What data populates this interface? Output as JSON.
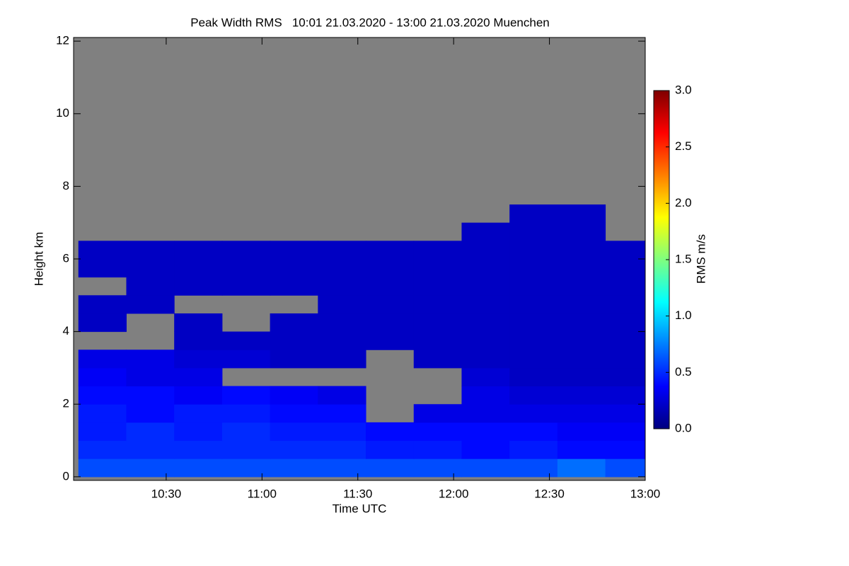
{
  "chart_data": {
    "type": "heatmap",
    "title": "Peak Width RMS   10:01 21.03.2020 - 13:00 21.03.2020 Muenchen",
    "x_label": "Time UTC",
    "y_label": "Height km",
    "colorbar_label": "RMS m/s",
    "xlim": [
      601,
      780
    ],
    "xticks": [
      {
        "value": 630,
        "label": "10:30"
      },
      {
        "value": 660,
        "label": "11:00"
      },
      {
        "value": 690,
        "label": "11:30"
      },
      {
        "value": 720,
        "label": "12:00"
      },
      {
        "value": 750,
        "label": "12:30"
      },
      {
        "value": 780,
        "label": "13:00"
      }
    ],
    "ylim": [
      -0.1,
      12.1
    ],
    "yticks": [
      0,
      2,
      4,
      6,
      8,
      10,
      12
    ],
    "zlim": [
      0,
      3
    ],
    "zticks": [
      {
        "value": 0,
        "label": "0.0"
      },
      0.5,
      {
        "value": 1,
        "label": "1.0"
      },
      1.5,
      {
        "value": 2,
        "label": "2.0"
      },
      2.5,
      {
        "value": 3,
        "label": "3.0"
      }
    ],
    "colorscale": [
      "#00007f",
      "#0000ff",
      "#007fff",
      "#00ffff",
      "#7fff7f",
      "#ffff00",
      "#ff7f00",
      "#ff0000",
      "#7f0000"
    ],
    "background": "#808080",
    "x": [
      610,
      625,
      640,
      655,
      670,
      685,
      700,
      715,
      730,
      745,
      760,
      775
    ],
    "y": [
      0.25,
      0.75,
      1.25,
      1.75,
      2.25,
      2.75,
      3.25,
      3.75,
      4.25,
      4.75,
      5.25,
      5.75,
      6.25,
      6.75,
      7.25,
      7.75
    ],
    "z": [
      [
        0.6,
        0.6,
        0.6,
        0.6,
        0.6,
        0.6,
        0.6,
        0.6,
        0.6,
        0.6,
        0.7,
        0.6
      ],
      [
        0.5,
        0.5,
        0.5,
        0.5,
        0.5,
        0.5,
        0.45,
        0.45,
        0.4,
        0.45,
        0.4,
        0.4
      ],
      [
        0.45,
        0.5,
        0.45,
        0.5,
        0.45,
        0.45,
        0.4,
        0.4,
        0.4,
        0.4,
        0.35,
        0.35
      ],
      [
        0.45,
        0.4,
        0.45,
        0.45,
        0.4,
        0.4,
        null,
        0.3,
        0.3,
        0.3,
        0.3,
        0.3
      ],
      [
        0.4,
        0.4,
        0.35,
        0.4,
        0.35,
        0.3,
        null,
        null,
        0.3,
        0.25,
        0.25,
        0.25
      ],
      [
        0.35,
        0.3,
        0.3,
        null,
        null,
        null,
        null,
        null,
        0.25,
        0.2,
        0.2,
        0.2
      ],
      [
        0.3,
        0.3,
        0.25,
        0.25,
        0.2,
        0.2,
        null,
        0.2,
        0.2,
        0.2,
        0.2,
        0.2
      ],
      [
        null,
        null,
        0.2,
        0.2,
        0.2,
        0.2,
        0.2,
        0.2,
        0.2,
        0.2,
        0.2,
        0.2
      ],
      [
        0.2,
        null,
        0.2,
        null,
        0.2,
        0.2,
        0.2,
        0.2,
        0.2,
        0.2,
        0.2,
        0.2
      ],
      [
        0.2,
        0.2,
        null,
        null,
        null,
        0.2,
        0.2,
        0.2,
        0.2,
        0.2,
        0.2,
        0.2
      ],
      [
        null,
        0.2,
        0.2,
        0.2,
        0.2,
        0.2,
        0.2,
        0.2,
        0.2,
        0.2,
        0.2,
        0.2
      ],
      [
        0.2,
        0.2,
        0.2,
        0.2,
        0.2,
        0.2,
        0.2,
        0.2,
        0.2,
        0.2,
        0.2,
        0.2
      ],
      [
        0.2,
        0.2,
        0.2,
        0.2,
        0.2,
        0.2,
        0.2,
        0.2,
        0.2,
        0.2,
        0.2,
        0.2
      ],
      [
        null,
        null,
        null,
        null,
        null,
        null,
        null,
        null,
        0.2,
        0.2,
        0.2,
        null
      ],
      [
        null,
        null,
        null,
        null,
        null,
        null,
        null,
        null,
        null,
        0.2,
        0.2,
        null
      ],
      [
        null,
        null,
        null,
        null,
        null,
        null,
        null,
        null,
        null,
        null,
        null,
        null
      ]
    ]
  }
}
